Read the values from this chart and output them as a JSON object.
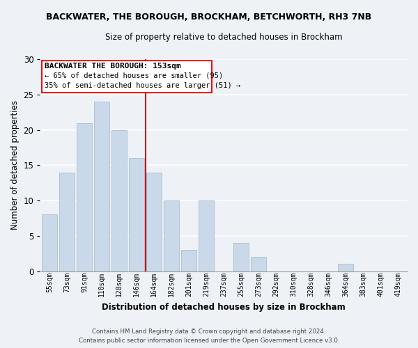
{
  "title": "BACKWATER, THE BOROUGH, BROCKHAM, BETCHWORTH, RH3 7NB",
  "subtitle": "Size of property relative to detached houses in Brockham",
  "xlabel": "Distribution of detached houses by size in Brockham",
  "ylabel": "Number of detached properties",
  "bar_labels": [
    "55sqm",
    "73sqm",
    "91sqm",
    "110sqm",
    "128sqm",
    "146sqm",
    "164sqm",
    "182sqm",
    "201sqm",
    "219sqm",
    "237sqm",
    "255sqm",
    "273sqm",
    "292sqm",
    "310sqm",
    "328sqm",
    "346sqm",
    "364sqm",
    "383sqm",
    "401sqm",
    "419sqm"
  ],
  "bar_values": [
    8,
    14,
    21,
    24,
    20,
    16,
    14,
    10,
    3,
    10,
    0,
    4,
    2,
    0,
    0,
    0,
    0,
    1,
    0,
    0,
    0
  ],
  "bar_color": "#c9d9e9",
  "bar_edge_color": "#aabccc",
  "vline_color": "#cc0000",
  "ylim": [
    0,
    30
  ],
  "yticks": [
    0,
    5,
    10,
    15,
    20,
    25,
    30
  ],
  "annotation_title": "BACKWATER THE BOROUGH: 153sqm",
  "annotation_line1": "← 65% of detached houses are smaller (95)",
  "annotation_line2": "35% of semi-detached houses are larger (51) →",
  "footer_line1": "Contains HM Land Registry data © Crown copyright and database right 2024.",
  "footer_line2": "Contains public sector information licensed under the Open Government Licence v3.0.",
  "background_color": "#eef2f7"
}
